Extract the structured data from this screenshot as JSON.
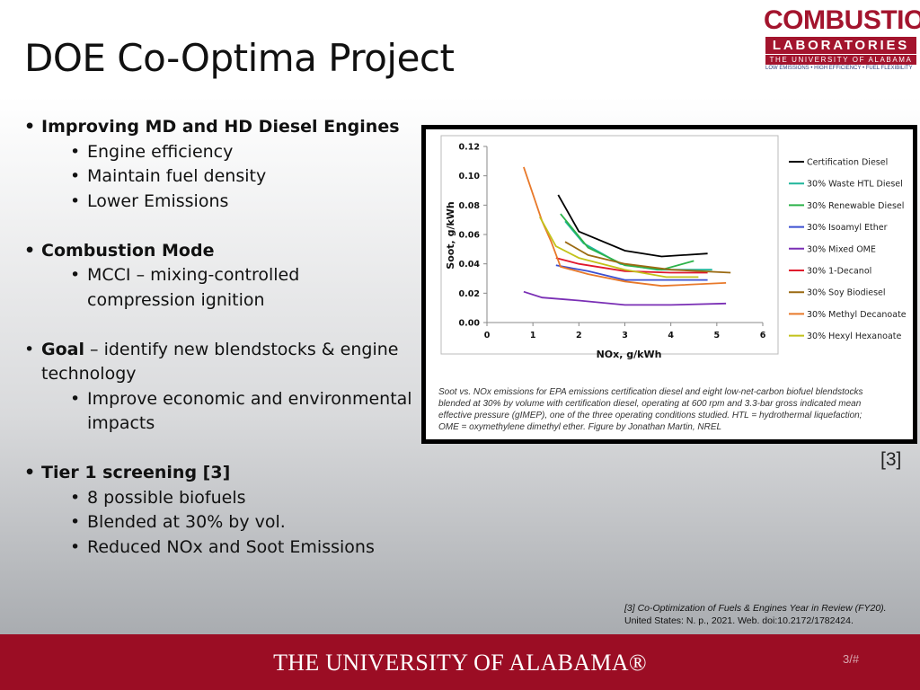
{
  "slide": {
    "title": "DOE Co-Optima Project",
    "page_number": "3/#",
    "reference_marker": "[3]"
  },
  "logo": {
    "line1": "COMBUSTION",
    "line2": "LABORATORIES",
    "line3": "THE UNIVERSITY OF ALABAMA",
    "tagline": "LOW EMISSIONS • HIGH EFFICIENCY • FUEL FLEXIBILITY"
  },
  "bullets": {
    "b1": "Improving MD and HD Diesel Engines",
    "b1_sub": [
      "Engine efficiency",
      "Maintain fuel density",
      "Lower Emissions"
    ],
    "b2": "Combustion Mode",
    "b2_sub1": "MCCI – mixing-controlled",
    "b2_sub1b": "compression ignition",
    "b3_bold": "Goal",
    "b3_rest": " – identify new blendstocks & engine",
    "b3_line2": "technology",
    "b3_sub1": "Improve economic and environmental",
    "b3_sub1b": "impacts",
    "b4": "Tier 1 screening [3]",
    "b4_sub": [
      "8 possible biofuels",
      "Blended at 30% by vol.",
      "Reduced NOx and Soot Emissions"
    ]
  },
  "figure": {
    "caption_lines": [
      "Soot vs. NOx emissions for EPA emissions certification diesel and eight low-net-carbon biofuel blendstocks",
      "blended at 30% by volume with certification diesel, operating at 600 rpm and 3.3-bar gross indicated mean",
      "effective pressure (gIMEP), one of the three operating conditions studied. HTL = hydrothermal liquefaction;",
      "OME = oxymethylene dimethyl ether. Figure by Jonathan Martin, NREL"
    ]
  },
  "citation": {
    "line1": "[3] Co-Optimization of Fuels & Engines Year in Review (FY20).",
    "line2": "United States: N. p., 2021. Web. doi:10.2172/1782424."
  },
  "footer": {
    "university": "THE UNIVERSITY OF ALABAMA®"
  },
  "chart_data": {
    "type": "line",
    "xlabel": "NOx, g/kWh",
    "ylabel": "Soot, g/kWh",
    "xlim": [
      0,
      6
    ],
    "ylim": [
      0,
      0.12
    ],
    "xticks": [
      "0",
      "1",
      "2",
      "3",
      "4",
      "5",
      "6"
    ],
    "yticks": [
      "0.00",
      "0.02",
      "0.04",
      "0.06",
      "0.08",
      "0.10",
      "0.12"
    ],
    "grid": false,
    "legend_position": "right",
    "series": [
      {
        "name": "Certification Diesel",
        "color": "#000000",
        "points": [
          [
            1.55,
            0.087
          ],
          [
            2.0,
            0.062
          ],
          [
            3.0,
            0.049
          ],
          [
            3.8,
            0.045
          ],
          [
            4.8,
            0.047
          ]
        ]
      },
      {
        "name": "30% Waste HTL Diesel",
        "color": "#1fb59a",
        "points": [
          [
            1.7,
            0.069
          ],
          [
            2.1,
            0.054
          ],
          [
            2.9,
            0.04
          ],
          [
            3.7,
            0.036
          ],
          [
            4.9,
            0.036
          ]
        ]
      },
      {
        "name": "30% Renewable Diesel",
        "color": "#2db34a",
        "points": [
          [
            1.6,
            0.074
          ],
          [
            2.2,
            0.051
          ],
          [
            3.0,
            0.039
          ],
          [
            3.8,
            0.036
          ],
          [
            4.5,
            0.042
          ]
        ]
      },
      {
        "name": "30% Isoamyl Ether",
        "color": "#3b4fd1",
        "points": [
          [
            1.5,
            0.039
          ],
          [
            2.2,
            0.035
          ],
          [
            3.0,
            0.029
          ],
          [
            4.0,
            0.029
          ],
          [
            4.8,
            0.029
          ]
        ]
      },
      {
        "name": "30% Mixed OME",
        "color": "#7a2fb5",
        "points": [
          [
            0.8,
            0.021
          ],
          [
            1.2,
            0.017
          ],
          [
            2.0,
            0.015
          ],
          [
            3.0,
            0.012
          ],
          [
            4.0,
            0.012
          ],
          [
            5.2,
            0.013
          ]
        ]
      },
      {
        "name": "30% 1-Decanol",
        "color": "#e0182d",
        "points": [
          [
            1.5,
            0.044
          ],
          [
            2.0,
            0.04
          ],
          [
            3.0,
            0.035
          ],
          [
            4.0,
            0.034
          ],
          [
            4.8,
            0.034
          ]
        ]
      },
      {
        "name": "30% Soy Biodiesel",
        "color": "#9b6a12",
        "points": [
          [
            1.7,
            0.055
          ],
          [
            2.2,
            0.046
          ],
          [
            3.0,
            0.04
          ],
          [
            4.0,
            0.036
          ],
          [
            5.3,
            0.034
          ]
        ]
      },
      {
        "name": "30% Methyl Decanoate",
        "color": "#e8792a",
        "points": [
          [
            0.8,
            0.106
          ],
          [
            1.2,
            0.069
          ],
          [
            1.4,
            0.055
          ],
          [
            1.6,
            0.038
          ],
          [
            2.2,
            0.033
          ],
          [
            3.0,
            0.028
          ],
          [
            3.8,
            0.025
          ],
          [
            5.2,
            0.027
          ]
        ]
      },
      {
        "name": "30% Hexyl Hexanoate",
        "color": "#c2c21a",
        "points": [
          [
            1.15,
            0.072
          ],
          [
            1.5,
            0.052
          ],
          [
            2.0,
            0.044
          ],
          [
            3.0,
            0.036
          ],
          [
            3.9,
            0.031
          ],
          [
            4.6,
            0.031
          ]
        ]
      }
    ]
  }
}
